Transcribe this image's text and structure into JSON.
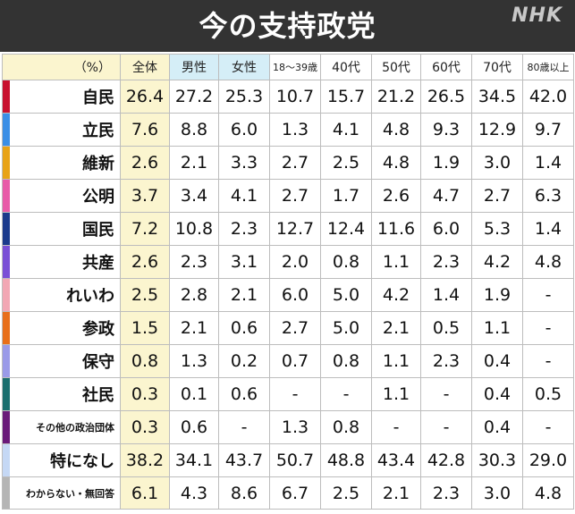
{
  "header": {
    "title": "今の支持政党",
    "logo": "NHK"
  },
  "table": {
    "columns": [
      {
        "label": "（%）",
        "cls": "label-h"
      },
      {
        "label": "全体",
        "cls": "total-h"
      },
      {
        "label": "男性",
        "cls": "male-h"
      },
      {
        "label": "女性",
        "cls": "female-h"
      },
      {
        "label": "18～39歳",
        "cls": "small"
      },
      {
        "label": "40代",
        "cls": ""
      },
      {
        "label": "50代",
        "cls": ""
      },
      {
        "label": "60代",
        "cls": ""
      },
      {
        "label": "70代",
        "cls": ""
      },
      {
        "label": "80歳以上",
        "cls": "small"
      }
    ],
    "rows": [
      {
        "party": "自民",
        "color": "#c8102e",
        "values": [
          "26.4",
          "27.2",
          "25.3",
          "10.7",
          "15.7",
          "21.2",
          "26.5",
          "34.5",
          "42.0"
        ]
      },
      {
        "party": "立民",
        "color": "#3b8fe6",
        "values": [
          "7.6",
          "8.8",
          "6.0",
          "1.3",
          "4.1",
          "4.8",
          "9.3",
          "12.9",
          "9.7"
        ]
      },
      {
        "party": "維新",
        "color": "#e8a317",
        "values": [
          "2.6",
          "2.1",
          "3.3",
          "2.7",
          "2.5",
          "4.8",
          "1.9",
          "3.0",
          "1.4"
        ]
      },
      {
        "party": "公明",
        "color": "#e85aa8",
        "values": [
          "3.7",
          "3.4",
          "4.1",
          "2.7",
          "1.7",
          "2.6",
          "4.7",
          "2.7",
          "6.3"
        ]
      },
      {
        "party": "国民",
        "color": "#1b3a8c",
        "values": [
          "7.2",
          "10.8",
          "2.3",
          "12.7",
          "12.4",
          "11.6",
          "6.0",
          "5.3",
          "1.4"
        ]
      },
      {
        "party": "共産",
        "color": "#7a4fd6",
        "values": [
          "2.6",
          "2.3",
          "3.1",
          "2.0",
          "0.8",
          "1.1",
          "2.3",
          "4.2",
          "4.8"
        ]
      },
      {
        "party": "れいわ",
        "color": "#f2a7b4",
        "values": [
          "2.5",
          "2.8",
          "2.1",
          "6.0",
          "5.0",
          "4.2",
          "1.4",
          "1.9",
          "-"
        ]
      },
      {
        "party": "参政",
        "color": "#e86f1a",
        "values": [
          "1.5",
          "2.1",
          "0.6",
          "2.7",
          "5.0",
          "2.1",
          "0.5",
          "1.1",
          "-"
        ]
      },
      {
        "party": "保守",
        "color": "#9a9ae8",
        "values": [
          "0.8",
          "1.3",
          "0.2",
          "0.7",
          "0.8",
          "1.1",
          "2.3",
          "0.4",
          "-"
        ]
      },
      {
        "party": "社民",
        "color": "#1a6e6e",
        "values": [
          "0.3",
          "0.1",
          "0.6",
          "-",
          "-",
          "1.1",
          "-",
          "0.4",
          "0.5"
        ]
      },
      {
        "party": "その他の政治団体",
        "color": "#6a1a7a",
        "values": [
          "0.3",
          "0.6",
          "-",
          "1.3",
          "0.8",
          "-",
          "-",
          "0.4",
          "-"
        ]
      },
      {
        "party": "特になし",
        "color": "#c5d8f5",
        "values": [
          "38.2",
          "34.1",
          "43.7",
          "50.7",
          "48.8",
          "43.4",
          "42.8",
          "30.3",
          "29.0"
        ]
      },
      {
        "party": "わからない・無回答",
        "color": "#b5b5b5",
        "values": [
          "6.1",
          "4.3",
          "8.6",
          "6.7",
          "2.5",
          "2.1",
          "2.3",
          "3.0",
          "4.8"
        ]
      }
    ]
  }
}
